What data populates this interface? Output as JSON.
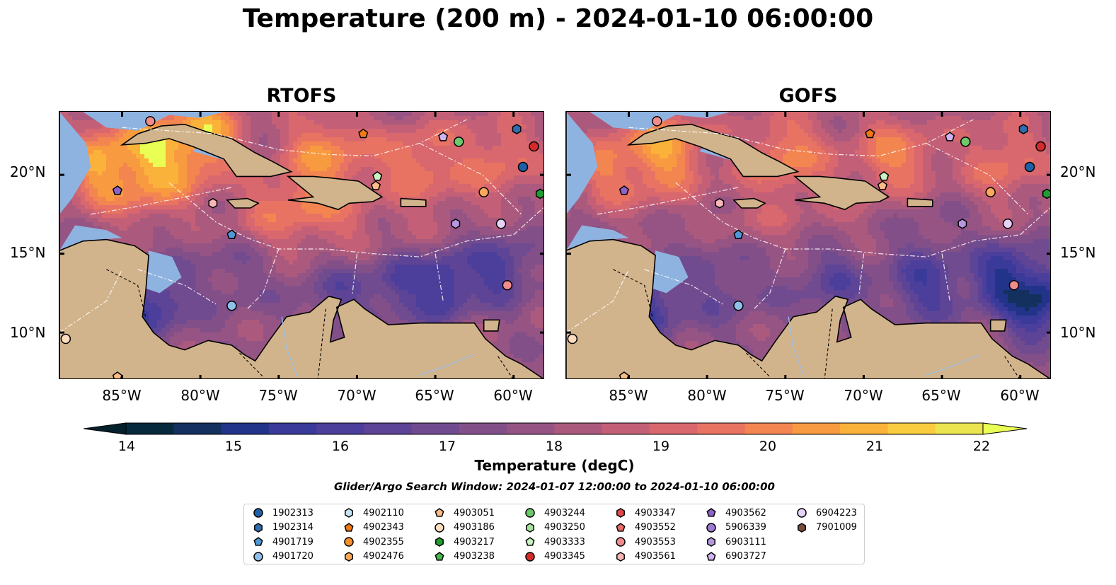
{
  "figure": {
    "title": "Temperature (200 m) - 2024-01-10 06:00:00",
    "search_window": "Glider/Argo Search Window: 2024-01-07 12:00:00 to 2024-01-10 06:00:00"
  },
  "map_view": {
    "lon_range": [
      -89,
      -58
    ],
    "lat_range": [
      7,
      24
    ],
    "lon_ticks": [
      "85°W",
      "80°W",
      "75°W",
      "70°W",
      "65°W",
      "60°W"
    ],
    "lat_ticks": [
      "20°N",
      "15°N",
      "10°N"
    ],
    "land_color": "#d2b48c",
    "shelf_color": "#8fb3e0"
  },
  "panels": [
    {
      "title": "RTOFS",
      "field": "rtofs"
    },
    {
      "title": "GOFS",
      "field": "gofs"
    }
  ],
  "colorbar": {
    "label": "Temperature (degC)",
    "min": 14,
    "max": 22,
    "step": 0.5,
    "ticks": [
      "14",
      "15",
      "16",
      "17",
      "18",
      "19",
      "20",
      "21",
      "22"
    ],
    "colors": [
      "#062a3b",
      "#13305e",
      "#22348a",
      "#3a3a9a",
      "#4c3f9c",
      "#5e4496",
      "#714b8f",
      "#834f89",
      "#965484",
      "#ab5a7e",
      "#c36077",
      "#d9676e",
      "#e87362",
      "#f38550",
      "#f89b40",
      "#fbb23a",
      "#f8cc3e",
      "#eae54f"
    ],
    "under_color": "#03202b",
    "over_color": "#eaff54"
  },
  "floats": [
    {
      "id": "1902313",
      "marker": "circle",
      "color": "#1f5fa8",
      "lon": -59.4,
      "lat": 20.5
    },
    {
      "id": "1902314",
      "marker": "hexagon",
      "color": "#2f6db0",
      "lon": -59.8,
      "lat": 22.9
    },
    {
      "id": "4901719",
      "marker": "pentagon",
      "color": "#4f9ad6",
      "lon": -78.0,
      "lat": 16.2
    },
    {
      "id": "4901720",
      "marker": "circle",
      "color": "#8fc0ea",
      "lon": -78.0,
      "lat": 11.7
    },
    {
      "id": "4902110",
      "marker": "hexagon",
      "color": "#c7e3f4",
      "lon": null,
      "lat": null
    },
    {
      "id": "4902343",
      "marker": "pentagon",
      "color": "#f07a12",
      "lon": -69.6,
      "lat": 22.6
    },
    {
      "id": "4902355",
      "marker": "circle",
      "color": "#f7902a",
      "lon": null,
      "lat": null
    },
    {
      "id": "4902476",
      "marker": "hexagon",
      "color": "#fba85a",
      "lon": null,
      "lat": null
    },
    {
      "id": "4903051",
      "marker": "pentagon",
      "color": "#fbbd85",
      "lon": -85.3,
      "lat": 7.2
    },
    {
      "id": "4903186",
      "marker": "circle",
      "color": "#fddcc0",
      "lon": -88.6,
      "lat": 9.6
    },
    {
      "id": "4903217",
      "marker": "hexagon",
      "color": "#1e9e31",
      "lon": -58.3,
      "lat": 18.8
    },
    {
      "id": "4903238",
      "marker": "pentagon",
      "color": "#45b84a",
      "lon": null,
      "lat": null
    },
    {
      "id": "4903244",
      "marker": "circle",
      "color": "#6dca6a",
      "lon": -63.5,
      "lat": 22.1
    },
    {
      "id": "4903250",
      "marker": "hexagon",
      "color": "#a6e29c",
      "lon": null,
      "lat": null
    },
    {
      "id": "4903333",
      "marker": "pentagon",
      "color": "#c9f3c0",
      "lon": -68.7,
      "lat": 19.9
    },
    {
      "id": "4903345",
      "marker": "circle",
      "color": "#d42a2a",
      "lon": -58.7,
      "lat": 21.8
    },
    {
      "id": "4903347",
      "marker": "hexagon",
      "color": "#e04a4a",
      "lon": null,
      "lat": null
    },
    {
      "id": "4903552",
      "marker": "pentagon",
      "color": "#ec6b6b",
      "lon": null,
      "lat": null
    },
    {
      "id": "4903553",
      "marker": "circle",
      "color": "#f28c8c",
      "lon": -60.4,
      "lat": 13.0
    },
    {
      "id": "4903561",
      "marker": "hexagon",
      "color": "#f8b7b7",
      "lon": -79.2,
      "lat": 18.2
    },
    {
      "id": "4903562",
      "marker": "pentagon",
      "color": "#8d63c9",
      "lon": -85.3,
      "lat": 19.0
    },
    {
      "id": "5906339",
      "marker": "circle",
      "color": "#9e7ad3",
      "lon": null,
      "lat": null
    },
    {
      "id": "6903111",
      "marker": "hexagon",
      "color": "#b798e0",
      "lon": -63.7,
      "lat": 16.9
    },
    {
      "id": "6903727",
      "marker": "pentagon",
      "color": "#d0b3f0",
      "lon": -64.5,
      "lat": 22.4
    },
    {
      "id": "6904223",
      "marker": "circle",
      "color": "#e6d2f7",
      "lon": -60.8,
      "lat": 16.9
    },
    {
      "id": "7901009",
      "marker": "hexagon",
      "color": "#7a4b3a",
      "lon": null,
      "lat": null
    }
  ],
  "map_markers": [
    {
      "marker": "circle",
      "color": "#f28c8c",
      "lon": -83.2,
      "lat": 23.4
    },
    {
      "marker": "pentagon",
      "color": "#fbbd85",
      "lon": -68.8,
      "lat": 19.3
    },
    {
      "marker": "circle",
      "color": "#fba85a",
      "lon": -61.9,
      "lat": 18.9
    }
  ]
}
